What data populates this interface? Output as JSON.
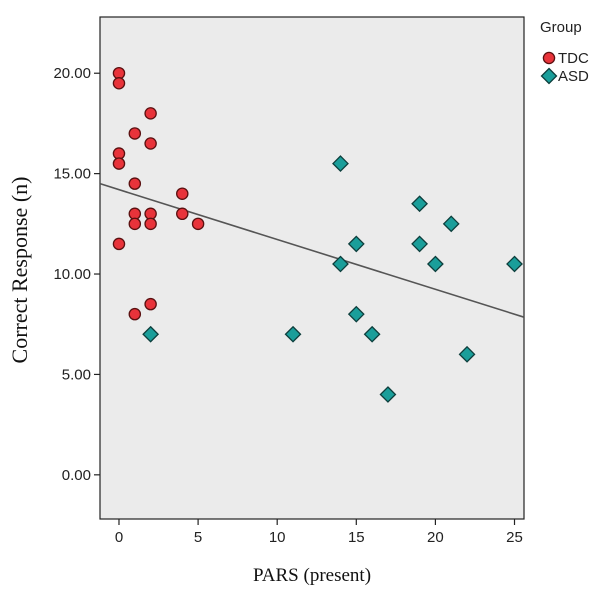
{
  "chart_data": {
    "type": "scatter",
    "xlabel": "PARS (present)",
    "ylabel": "Correct Response (n)",
    "xlim": [
      -1.2,
      25.6
    ],
    "ylim": [
      -2.2,
      22.8
    ],
    "x_ticks": [
      0,
      5,
      10,
      15,
      20,
      25
    ],
    "x_tick_labels": [
      "0",
      "5",
      "10",
      "15",
      "20",
      "25"
    ],
    "y_ticks": [
      0,
      5,
      10,
      15,
      20
    ],
    "y_tick_labels": [
      "0.00",
      "5.00",
      "10.00",
      "15.00",
      "20.00"
    ],
    "grid": false,
    "plot_background": "#ebebeb",
    "legend": {
      "title": "Group",
      "placement": "top-right, outside plot"
    },
    "series": [
      {
        "name": "TDC",
        "marker": "circle",
        "color": "#e8333a",
        "edge_color": "#5a1010",
        "points": [
          [
            0,
            20
          ],
          [
            0,
            19.5
          ],
          [
            0,
            16
          ],
          [
            0,
            15.5
          ],
          [
            0,
            11.5
          ],
          [
            1,
            17
          ],
          [
            1,
            14.5
          ],
          [
            1,
            13
          ],
          [
            1,
            12.5
          ],
          [
            1,
            8
          ],
          [
            2,
            18
          ],
          [
            2,
            16.5
          ],
          [
            2,
            13
          ],
          [
            2,
            12.5
          ],
          [
            2,
            8.5
          ],
          [
            4,
            14
          ],
          [
            4,
            13
          ],
          [
            5,
            12.5
          ]
        ]
      },
      {
        "name": "ASD",
        "marker": "diamond",
        "color": "#1a9e9a",
        "edge_color": "#0d3e3c",
        "points": [
          [
            2,
            7
          ],
          [
            11,
            7
          ],
          [
            14,
            15.5
          ],
          [
            14,
            10.5
          ],
          [
            15,
            11.5
          ],
          [
            15,
            8
          ],
          [
            16,
            7
          ],
          [
            17,
            4
          ],
          [
            19,
            13.5
          ],
          [
            19,
            11.5
          ],
          [
            20,
            10.5
          ],
          [
            21,
            12.5
          ],
          [
            22,
            6
          ],
          [
            25,
            10.5
          ]
        ]
      }
    ],
    "fit_line": {
      "x": [
        -1.2,
        25.6
      ],
      "y": [
        14.5,
        7.85
      ],
      "color": "#555555"
    }
  }
}
